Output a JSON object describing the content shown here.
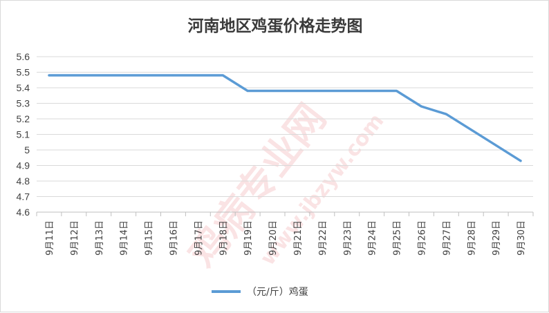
{
  "chart_data": {
    "type": "line",
    "title": "河南地区鸡蛋价格走势图",
    "categories": [
      "9月11日",
      "9月12日",
      "9月13日",
      "9月14日",
      "9月15日",
      "9月16日",
      "9月17日",
      "9月18日",
      "9月19日",
      "9月20日",
      "9月21日",
      "9月22日",
      "9月23日",
      "9月24日",
      "9月25日",
      "9月26日",
      "9月27日",
      "9月28日",
      "9月29日",
      "9月30日"
    ],
    "series": [
      {
        "name": "（元/斤）鸡蛋",
        "color": "#5b9bd5",
        "values": [
          5.48,
          5.48,
          5.48,
          5.48,
          5.48,
          5.48,
          5.48,
          5.48,
          5.38,
          5.38,
          5.38,
          5.38,
          5.38,
          5.38,
          5.38,
          5.28,
          5.23,
          5.13,
          5.03,
          4.93
        ]
      }
    ],
    "yticks": [
      "5.6",
      "5.5",
      "5.4",
      "5.3",
      "5.2",
      "5.1",
      "5",
      "4.9",
      "4.8",
      "4.7",
      "4.6"
    ],
    "ylim": [
      4.6,
      5.6
    ],
    "grid": true,
    "legend": "bottom"
  },
  "watermark": {
    "main": "鸡病专业网",
    "url": "www.jbzyw.com"
  }
}
